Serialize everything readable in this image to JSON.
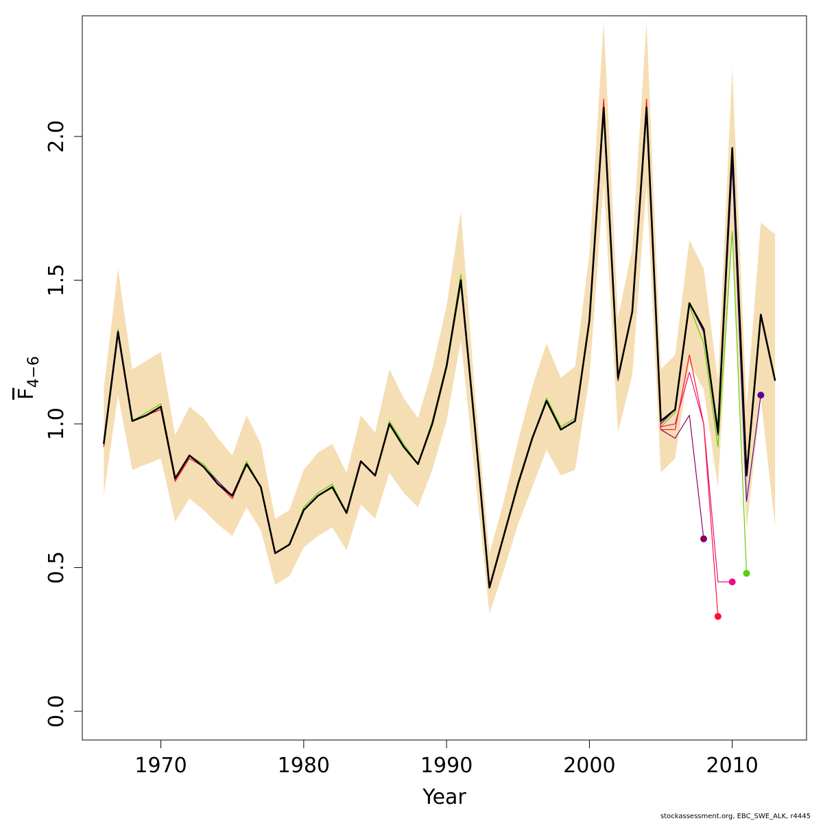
{
  "chart_data": {
    "type": "line",
    "xlabel": "Year",
    "ylabel": {
      "main": "F",
      "sub": "4−6"
    },
    "xlim": [
      1964.5,
      2015.2
    ],
    "ylim": [
      -0.1,
      2.42
    ],
    "x_ticks": [
      1970,
      1980,
      1990,
      2000,
      2010
    ],
    "x_tick_labels": [
      "1970",
      "1980",
      "1990",
      "2000",
      "2010"
    ],
    "y_ticks": [
      0.0,
      0.5,
      1.0,
      1.5,
      2.0
    ],
    "y_tick_labels": [
      "0.0",
      "0.5",
      "1.0",
      "1.5",
      "2.0"
    ],
    "grid": false,
    "band_color": "#F5DEB3",
    "confidence_band": {
      "years": [
        1966,
        1967,
        1968,
        1969,
        1970,
        1971,
        1972,
        1973,
        1974,
        1975,
        1976,
        1977,
        1978,
        1979,
        1980,
        1981,
        1982,
        1983,
        1984,
        1985,
        1986,
        1987,
        1988,
        1989,
        1990,
        1991,
        1992,
        1993,
        1994,
        1995,
        1996,
        1997,
        1998,
        1999,
        2000,
        2001,
        2002,
        2003,
        2004,
        2005,
        2006,
        2007,
        2008,
        2009,
        2010,
        2011,
        2012,
        2013
      ],
      "lower": [
        0.75,
        1.1,
        0.84,
        0.86,
        0.88,
        0.66,
        0.74,
        0.7,
        0.65,
        0.61,
        0.71,
        0.63,
        0.44,
        0.47,
        0.57,
        0.61,
        0.64,
        0.56,
        0.72,
        0.67,
        0.83,
        0.76,
        0.71,
        0.84,
        1.01,
        1.29,
        0.82,
        0.34,
        0.49,
        0.65,
        0.78,
        0.91,
        0.82,
        0.84,
        1.16,
        1.84,
        0.97,
        1.17,
        1.83,
        0.83,
        0.88,
        1.21,
        1.12,
        0.78,
        1.66,
        0.63,
        1.09,
        0.64
      ],
      "upper": [
        1.12,
        1.54,
        1.19,
        1.22,
        1.25,
        0.96,
        1.06,
        1.02,
        0.95,
        0.89,
        1.03,
        0.93,
        0.67,
        0.7,
        0.84,
        0.9,
        0.93,
        0.83,
        1.03,
        0.97,
        1.19,
        1.09,
        1.02,
        1.19,
        1.41,
        1.74,
        1.1,
        0.55,
        0.73,
        0.94,
        1.13,
        1.28,
        1.16,
        1.2,
        1.59,
        2.4,
        1.37,
        1.61,
        2.4,
        1.19,
        1.24,
        1.64,
        1.54,
        1.15,
        2.24,
        1.06,
        1.7,
        1.66
      ]
    },
    "series": [
      {
        "color": "#5BCF00",
        "width": 1.2,
        "end_marker": true,
        "x": [
          1966,
          1967,
          1968,
          1969,
          1970,
          1971,
          1972,
          1973,
          1974,
          1975,
          1976,
          1977,
          1978,
          1979,
          1980,
          1981,
          1982,
          1983,
          1984,
          1985,
          1986,
          1987,
          1988,
          1989,
          1990,
          1991,
          1992,
          1993,
          1994,
          1995,
          1996,
          1997,
          1998,
          1999,
          2000,
          2001,
          2002,
          2003,
          2004,
          2005,
          2006,
          2007,
          2008,
          2009,
          2010,
          2011
        ],
        "y": [
          0.93,
          1.33,
          1.01,
          1.04,
          1.07,
          0.81,
          0.89,
          0.86,
          0.8,
          0.75,
          0.87,
          0.78,
          0.55,
          0.58,
          0.71,
          0.76,
          0.79,
          0.69,
          0.87,
          0.82,
          1.01,
          0.93,
          0.86,
          1.01,
          1.21,
          1.52,
          0.98,
          0.43,
          0.61,
          0.8,
          0.95,
          1.09,
          0.99,
          1.02,
          1.36,
          2.1,
          1.15,
          1.39,
          2.1,
          0.99,
          1.04,
          1.41,
          1.28,
          0.92,
          1.67,
          0.48
        ]
      },
      {
        "color": "#5B009B",
        "width": 1.2,
        "end_marker": true,
        "x": [
          1966,
          1967,
          1968,
          1969,
          1970,
          1971,
          1972,
          1973,
          1974,
          1975,
          1976,
          1977,
          1978,
          1979,
          1980,
          1981,
          1982,
          1983,
          1984,
          1985,
          1986,
          1987,
          1988,
          1989,
          1990,
          1991,
          1992,
          1993,
          1994,
          1995,
          1996,
          1997,
          1998,
          1999,
          2000,
          2001,
          2002,
          2003,
          2004,
          2005,
          2006,
          2007,
          2008,
          2009,
          2010,
          2011,
          2012
        ],
        "y": [
          0.93,
          1.32,
          1.01,
          1.03,
          1.06,
          0.81,
          0.89,
          0.85,
          0.8,
          0.75,
          0.86,
          0.78,
          0.55,
          0.58,
          0.7,
          0.75,
          0.78,
          0.69,
          0.87,
          0.82,
          1.0,
          0.92,
          0.86,
          1.0,
          1.2,
          1.5,
          0.98,
          0.43,
          0.61,
          0.79,
          0.95,
          1.08,
          0.98,
          1.01,
          1.36,
          2.1,
          1.15,
          1.39,
          2.1,
          1.0,
          1.05,
          1.42,
          1.32,
          0.96,
          1.9,
          0.73,
          1.1
        ]
      },
      {
        "color": "#EE0C86",
        "width": 1.2,
        "end_marker": true,
        "x": [
          1966,
          1967,
          1968,
          1969,
          1970,
          1971,
          1972,
          1973,
          1974,
          1975,
          1976,
          1977,
          1978,
          1979,
          1980,
          1981,
          1982,
          1983,
          1984,
          1985,
          1986,
          1987,
          1988,
          1989,
          1990,
          1991,
          1992,
          1993,
          1994,
          1995,
          1996,
          1997,
          1998,
          1999,
          2000,
          2001,
          2002,
          2003,
          2004,
          2005,
          2006,
          2007,
          2008,
          2009,
          2010
        ],
        "y": [
          0.92,
          1.31,
          1.01,
          1.03,
          1.05,
          0.8,
          0.88,
          0.85,
          0.79,
          0.74,
          0.86,
          0.78,
          0.55,
          0.58,
          0.7,
          0.75,
          0.78,
          0.69,
          0.87,
          0.82,
          1.0,
          0.92,
          0.86,
          1.0,
          1.2,
          1.5,
          0.98,
          0.43,
          0.61,
          0.79,
          0.95,
          1.08,
          0.98,
          1.01,
          1.36,
          2.12,
          1.16,
          1.39,
          2.12,
          0.99,
          1.0,
          1.18,
          1.0,
          0.45,
          0.45
        ]
      },
      {
        "color": "#8B0064",
        "width": 1.2,
        "end_marker": true,
        "x": [
          1966,
          1967,
          1968,
          1969,
          1970,
          1971,
          1972,
          1973,
          1974,
          1975,
          1976,
          1977,
          1978,
          1979,
          1980,
          1981,
          1982,
          1983,
          1984,
          1985,
          1986,
          1987,
          1988,
          1989,
          1990,
          1991,
          1992,
          1993,
          1994,
          1995,
          1996,
          1997,
          1998,
          1999,
          2000,
          2001,
          2002,
          2003,
          2004,
          2005,
          2006,
          2007,
          2008
        ],
        "y": [
          0.93,
          1.32,
          1.01,
          1.03,
          1.06,
          0.81,
          0.89,
          0.85,
          0.79,
          0.75,
          0.86,
          0.78,
          0.55,
          0.58,
          0.7,
          0.75,
          0.78,
          0.69,
          0.87,
          0.82,
          1.0,
          0.92,
          0.86,
          1.0,
          1.2,
          1.5,
          0.98,
          0.43,
          0.61,
          0.79,
          0.95,
          1.08,
          0.98,
          1.01,
          1.36,
          2.11,
          1.16,
          1.39,
          2.11,
          0.98,
          0.95,
          1.03,
          0.6
        ]
      },
      {
        "color": "#FF0F2F",
        "width": 1.2,
        "end_marker": true,
        "x": [
          1966,
          1967,
          1968,
          1969,
          1970,
          1971,
          1972,
          1973,
          1974,
          1975,
          1976,
          1977,
          1978,
          1979,
          1980,
          1981,
          1982,
          1983,
          1984,
          1985,
          1986,
          1987,
          1988,
          1989,
          1990,
          1991,
          1992,
          1993,
          1994,
          1995,
          1996,
          1997,
          1998,
          1999,
          2000,
          2001,
          2002,
          2003,
          2004,
          2005,
          2006,
          2007,
          2008,
          2009
        ],
        "y": [
          0.92,
          1.31,
          1.01,
          1.03,
          1.05,
          0.8,
          0.88,
          0.85,
          0.79,
          0.74,
          0.86,
          0.78,
          0.55,
          0.58,
          0.7,
          0.75,
          0.78,
          0.69,
          0.87,
          0.82,
          1.0,
          0.92,
          0.86,
          1.0,
          1.2,
          1.5,
          0.98,
          0.43,
          0.61,
          0.79,
          0.95,
          1.08,
          0.98,
          1.01,
          1.36,
          2.13,
          1.16,
          1.39,
          2.13,
          0.98,
          0.98,
          1.24,
          1.0,
          0.33
        ]
      },
      {
        "color": "#000000",
        "width": 2.6,
        "end_marker": false,
        "x": [
          1966,
          1967,
          1968,
          1969,
          1970,
          1971,
          1972,
          1973,
          1974,
          1975,
          1976,
          1977,
          1978,
          1979,
          1980,
          1981,
          1982,
          1983,
          1984,
          1985,
          1986,
          1987,
          1988,
          1989,
          1990,
          1991,
          1992,
          1993,
          1994,
          1995,
          1996,
          1997,
          1998,
          1999,
          2000,
          2001,
          2002,
          2003,
          2004,
          2005,
          2006,
          2007,
          2008,
          2009,
          2010,
          2011,
          2012,
          2013
        ],
        "y": [
          0.93,
          1.32,
          1.01,
          1.03,
          1.06,
          0.81,
          0.89,
          0.85,
          0.79,
          0.75,
          0.86,
          0.78,
          0.55,
          0.58,
          0.7,
          0.75,
          0.78,
          0.69,
          0.87,
          0.82,
          1.0,
          0.92,
          0.86,
          1.0,
          1.2,
          1.5,
          0.98,
          0.43,
          0.61,
          0.79,
          0.95,
          1.08,
          0.98,
          1.01,
          1.36,
          2.1,
          1.16,
          1.39,
          2.1,
          1.01,
          1.05,
          1.42,
          1.33,
          0.97,
          1.96,
          0.82,
          1.38,
          1.15
        ]
      }
    ]
  },
  "footer": {
    "credit": "stockassessment.org, EBC_SWE_ALK, r4445"
  }
}
